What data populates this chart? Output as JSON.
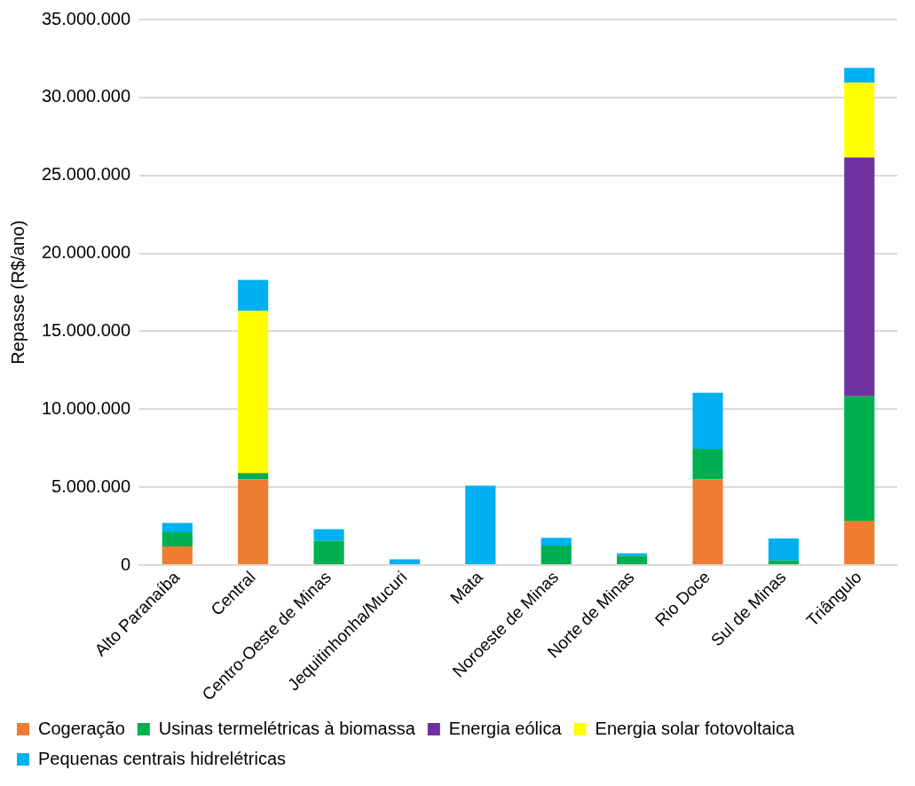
{
  "chart_data": {
    "type": "bar",
    "stacked": true,
    "ylabel": "Repasse (R$/ano)",
    "categories": [
      "Alto Paranaíba",
      "Central",
      "Centro-Oeste de Minas",
      "Jequitinhonha/Mucuri",
      "Mata",
      "Noroeste de Minas",
      "Norte de Minas",
      "Rio Doce",
      "Sul de Minas",
      "Triângulo"
    ],
    "series": [
      {
        "name": "Cogeração",
        "color": "#ed7d31",
        "values": [
          1200000,
          5500000,
          0,
          0,
          0,
          0,
          0,
          5500000,
          0,
          2850000
        ]
      },
      {
        "name": "Usinas termelétricas à biomassa",
        "color": "#00b050",
        "values": [
          900000,
          400000,
          1550000,
          0,
          0,
          1250000,
          580000,
          1950000,
          300000,
          7970000
        ]
      },
      {
        "name": "Energia eólica",
        "color": "#7030a0",
        "values": [
          0,
          0,
          0,
          0,
          0,
          0,
          0,
          0,
          0,
          15330000
        ]
      },
      {
        "name": "Energia solar fotovoltaica",
        "color": "#ffff00",
        "values": [
          0,
          10400000,
          0,
          0,
          0,
          0,
          0,
          0,
          0,
          4790000
        ]
      },
      {
        "name": "Pequenas centrais hidrelétricas",
        "color": "#00b0f0",
        "values": [
          600000,
          2000000,
          750000,
          370000,
          5090000,
          500000,
          180000,
          3600000,
          1400000,
          960000
        ]
      }
    ],
    "ylim": [
      0,
      35000000
    ],
    "yticks": [
      {
        "value": 0,
        "label": "0"
      },
      {
        "value": 5000000,
        "label": "5.000.000"
      },
      {
        "value": 10000000,
        "label": "10.000.000"
      },
      {
        "value": 15000000,
        "label": "15.000.000"
      },
      {
        "value": 20000000,
        "label": "20.000.000"
      },
      {
        "value": 25000000,
        "label": "25.000.000"
      },
      {
        "value": 30000000,
        "label": "30.000.000"
      },
      {
        "value": 35000000,
        "label": "35.000.000"
      }
    ],
    "grid": "y",
    "legend": "bottom"
  }
}
